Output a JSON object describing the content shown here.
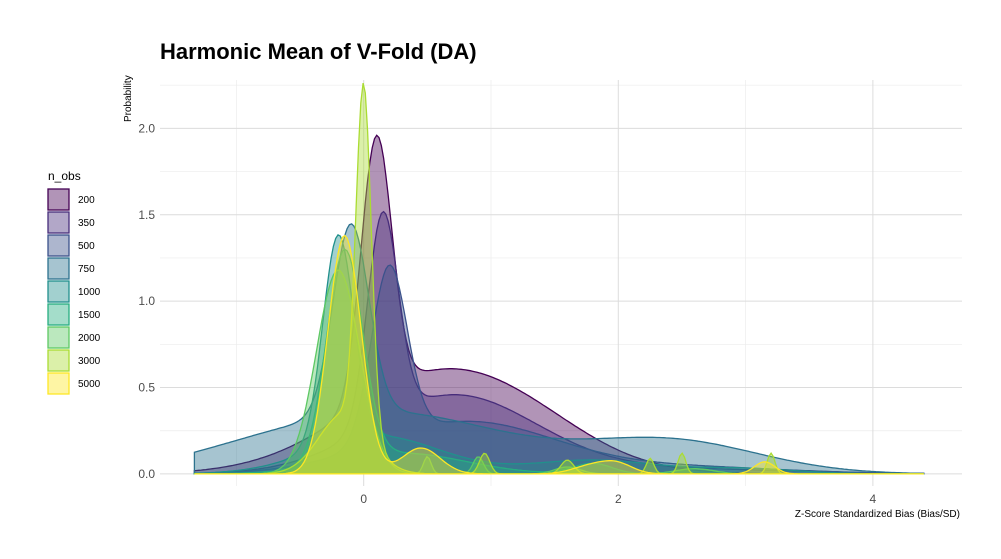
{
  "chart_data": {
    "type": "area",
    "title": "Harmonic Mean of V-Fold (DA)",
    "xlabel": "Z-Score Standardized Bias (Bias/SD)",
    "ylabel": "Probability",
    "xlim": [
      -1.6,
      4.7
    ],
    "ylim": [
      -0.07,
      2.28
    ],
    "x_ticks": [
      0,
      2,
      4
    ],
    "y_ticks": [
      0.0,
      0.5,
      1.0,
      1.5,
      2.0
    ],
    "grid": true,
    "legend": {
      "title": "n_obs",
      "placement": "left"
    },
    "series": [
      {
        "name": "200",
        "color": "#440154",
        "components": [
          [
            0.1,
            0.12,
            1.5
          ],
          [
            0.65,
            0.75,
            0.6
          ],
          [
            1.45,
            0.45,
            0.04
          ]
        ]
      },
      {
        "name": "350",
        "color": "#472D7B",
        "components": [
          [
            0.15,
            0.12,
            1.2
          ],
          [
            0.7,
            0.65,
            0.45
          ],
          [
            2.3,
            1.0,
            0.03
          ]
        ]
      },
      {
        "name": "500",
        "color": "#3B528B",
        "components": [
          [
            0.2,
            0.14,
            1.0
          ],
          [
            0.8,
            0.7,
            0.3
          ],
          [
            2.5,
            0.8,
            0.04
          ]
        ]
      },
      {
        "name": "750",
        "color": "#2C728E",
        "components": [
          [
            -0.1,
            0.14,
            1.1
          ],
          [
            0.2,
            0.9,
            0.35
          ],
          [
            2.4,
            0.7,
            0.19
          ],
          [
            -1.0,
            0.6,
            0.05
          ]
        ]
      },
      {
        "name": "1000",
        "color": "#21908C",
        "components": [
          [
            -0.2,
            0.12,
            1.2
          ],
          [
            0.1,
            0.5,
            0.22
          ],
          [
            1.8,
            0.5,
            0.08
          ],
          [
            3.0,
            0.4,
            0.03
          ]
        ]
      },
      {
        "name": "1500",
        "color": "#27AD81",
        "components": [
          [
            -0.15,
            0.14,
            1.22
          ],
          [
            0.3,
            0.5,
            0.12
          ],
          [
            1.8,
            0.15,
            0.06
          ]
        ]
      },
      {
        "name": "2000",
        "color": "#5DC863",
        "components": [
          [
            -0.2,
            0.17,
            1.18
          ],
          [
            0.5,
            0.03,
            0.1
          ],
          [
            0.9,
            0.04,
            0.1
          ],
          [
            1.6,
            0.1,
            0.04
          ],
          [
            2.6,
            0.15,
            0.03
          ]
        ]
      },
      {
        "name": "3000",
        "color": "#AADC32",
        "components": [
          [
            0.0,
            0.06,
            2.0
          ],
          [
            -0.15,
            0.2,
            0.35
          ],
          [
            0.95,
            0.04,
            0.12
          ],
          [
            1.6,
            0.05,
            0.08
          ],
          [
            2.25,
            0.03,
            0.09
          ],
          [
            2.5,
            0.03,
            0.12
          ],
          [
            3.2,
            0.03,
            0.12
          ]
        ]
      },
      {
        "name": "5000",
        "color": "#FDE725",
        "components": [
          [
            -0.15,
            0.13,
            1.38
          ],
          [
            0.45,
            0.15,
            0.15
          ],
          [
            1.8,
            0.15,
            0.05
          ],
          [
            2.0,
            0.12,
            0.05
          ],
          [
            3.15,
            0.08,
            0.07
          ]
        ]
      }
    ]
  }
}
